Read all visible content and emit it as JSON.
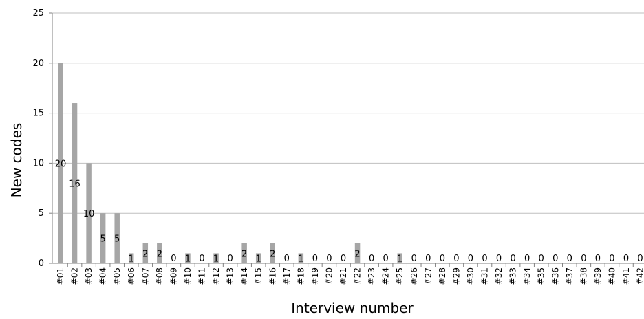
{
  "chart_data": {
    "type": "bar",
    "title": "",
    "xlabel": "Interview number",
    "ylabel": "New codes",
    "ylim": [
      0,
      25
    ],
    "yticks": [
      0,
      5,
      10,
      15,
      20,
      25
    ],
    "grid": true,
    "legend": "none",
    "categories": [
      "#01",
      "#02",
      "#03",
      "#04",
      "#05",
      "#06",
      "#07",
      "#08",
      "#09",
      "#10",
      "#11",
      "#12",
      "#13",
      "#14",
      "#15",
      "#16",
      "#17",
      "#18",
      "#19",
      "#20",
      "#21",
      "#22",
      "#23",
      "#24",
      "#25",
      "#26",
      "#27",
      "#28",
      "#29",
      "#30",
      "#31",
      "#32",
      "#33",
      "#34",
      "#35",
      "#36",
      "#37",
      "#38",
      "#39",
      "#40",
      "#41",
      "#42"
    ],
    "values": [
      20,
      16,
      10,
      5,
      5,
      1,
      2,
      2,
      0,
      1,
      0,
      1,
      0,
      2,
      1,
      2,
      0,
      1,
      0,
      0,
      0,
      2,
      0,
      0,
      1,
      0,
      0,
      0,
      0,
      0,
      0,
      0,
      0,
      0,
      0,
      0,
      0,
      0,
      0,
      0,
      0,
      0
    ],
    "colors": {
      "bar": "#a6a6a6",
      "grid": "#bfbfbf",
      "axis": "#808080"
    }
  }
}
